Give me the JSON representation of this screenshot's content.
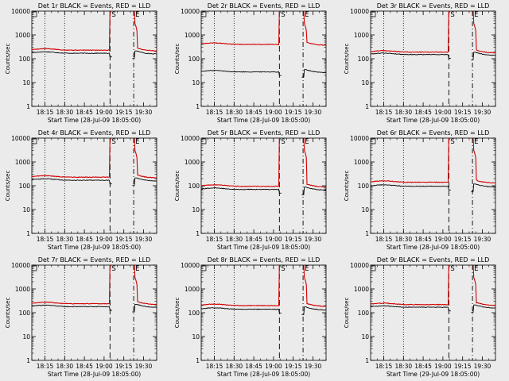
{
  "figure": {
    "background": "#ebebeb",
    "events_color": "#000000",
    "lld_color": "#d40000"
  },
  "chart_data": [
    {
      "type": "line",
      "title": "Det 1r BLACK = Events, RED = LLD",
      "ylabel": "Counts/sec",
      "xlabel": "Start Time (28-Jul-09 18:05:00)",
      "y_scale": "log",
      "ylim": [
        1,
        10000
      ],
      "y_ticks": [
        "1",
        "10",
        "100",
        "1000",
        "10000"
      ],
      "x_ticks": [
        "18:15",
        "18:30",
        "18:45",
        "19:00",
        "19:15",
        "19:30"
      ],
      "series": [
        {
          "name": "Events",
          "level": 170
        },
        {
          "name": "LLD",
          "level": 230
        }
      ],
      "markers": [
        "S",
        "E"
      ]
    },
    {
      "type": "line",
      "title": "Det 2r BLACK = Events, RED = LLD",
      "ylabel": "Counts/sec",
      "xlabel": "Start Time (28-Jul-09 18:05:00)",
      "y_scale": "log",
      "ylim": [
        1,
        10000
      ],
      "y_ticks": [
        "1",
        "10",
        "100",
        "1000",
        "10000"
      ],
      "x_ticks": [
        "18:15",
        "18:30",
        "18:45",
        "19:00",
        "19:15",
        "19:30"
      ],
      "series": [
        {
          "name": "Events",
          "level": 28
        },
        {
          "name": "LLD",
          "level": 400
        }
      ],
      "markers": [
        "S",
        "E"
      ]
    },
    {
      "type": "line",
      "title": "Det 3r BLACK = Events, RED = LLD",
      "ylabel": "Counts/sec",
      "xlabel": "Start Time (28-Jul-09 18:05:00)",
      "y_scale": "log",
      "ylim": [
        1,
        10000
      ],
      "y_ticks": [
        "1",
        "10",
        "100",
        "1000",
        "10000"
      ],
      "x_ticks": [
        "18:15",
        "18:30",
        "18:45",
        "19:00",
        "19:15",
        "19:30"
      ],
      "series": [
        {
          "name": "Events",
          "level": 150
        },
        {
          "name": "LLD",
          "level": 190
        }
      ],
      "markers": [
        "S",
        "E"
      ]
    },
    {
      "type": "line",
      "title": "Det 4r BLACK = Events, RED = LLD",
      "ylabel": "Counts/sec",
      "xlabel": "Start Time (28-Jul-09 18:05:00)",
      "y_scale": "log",
      "ylim": [
        1,
        10000
      ],
      "y_ticks": [
        "1",
        "10",
        "100",
        "1000",
        "10000"
      ],
      "x_ticks": [
        "18:15",
        "18:30",
        "18:45",
        "19:00",
        "19:15",
        "19:30"
      ],
      "series": [
        {
          "name": "Events",
          "level": 170
        },
        {
          "name": "LLD",
          "level": 230
        }
      ],
      "markers": [
        "S",
        "E"
      ]
    },
    {
      "type": "line",
      "title": "Det 5r BLACK = Events, RED = LLD",
      "ylabel": "Counts/sec",
      "xlabel": "Start Time (28-Jul-09 18:05:00)",
      "y_scale": "log",
      "ylim": [
        1,
        10000
      ],
      "y_ticks": [
        "1",
        "10",
        "100",
        "1000",
        "10000"
      ],
      "x_ticks": [
        "18:15",
        "18:30",
        "18:45",
        "19:00",
        "19:15",
        "19:30"
      ],
      "series": [
        {
          "name": "Events",
          "level": 70
        },
        {
          "name": "LLD",
          "level": 95
        }
      ],
      "markers": [
        "S",
        "E"
      ]
    },
    {
      "type": "line",
      "title": "Det 6r BLACK = Events, RED = LLD",
      "ylabel": "Counts/sec",
      "xlabel": "Start Time (28-Jul-09 18:05:00)",
      "y_scale": "log",
      "ylim": [
        1,
        10000
      ],
      "y_ticks": [
        "1",
        "10",
        "100",
        "1000",
        "10000"
      ],
      "x_ticks": [
        "18:15",
        "18:30",
        "18:45",
        "19:00",
        "19:15",
        "19:30"
      ],
      "series": [
        {
          "name": "Events",
          "level": 95
        },
        {
          "name": "LLD",
          "level": 140
        }
      ],
      "markers": [
        "S",
        "E"
      ]
    },
    {
      "type": "line",
      "title": "Det 7r BLACK = Events, RED = LLD",
      "ylabel": "Counts/sec",
      "xlabel": "Start Time (28-Jul-09 18:05:00)",
      "y_scale": "log",
      "ylim": [
        1,
        10000
      ],
      "y_ticks": [
        "1",
        "10",
        "100",
        "1000",
        "10000"
      ],
      "x_ticks": [
        "18:15",
        "18:30",
        "18:45",
        "19:00",
        "19:15",
        "19:30"
      ],
      "series": [
        {
          "name": "Events",
          "level": 180
        },
        {
          "name": "LLD",
          "level": 240
        }
      ],
      "markers": [
        "S",
        "E"
      ]
    },
    {
      "type": "line",
      "title": "Det 8r BLACK = Events, RED = LLD",
      "ylabel": "Counts/sec",
      "xlabel": "Start Time (28-Jul-09 18:05:00)",
      "y_scale": "log",
      "ylim": [
        1,
        10000
      ],
      "y_ticks": [
        "1",
        "10",
        "100",
        "1000",
        "10000"
      ],
      "x_ticks": [
        "18:15",
        "18:30",
        "18:45",
        "19:00",
        "19:15",
        "19:30"
      ],
      "series": [
        {
          "name": "Events",
          "level": 140
        },
        {
          "name": "LLD",
          "level": 200
        }
      ],
      "markers": [
        "S",
        "E"
      ]
    },
    {
      "type": "line",
      "title": "Det 9r BLACK = Events, RED = LLD",
      "ylabel": "Counts/sec",
      "xlabel": "Start Time (29-Jul-09 18:05:00)",
      "y_scale": "log",
      "ylim": [
        1,
        10000
      ],
      "y_ticks": [
        "1",
        "10",
        "100",
        "1000",
        "10000"
      ],
      "x_ticks": [
        "18:15",
        "18:30",
        "18:45",
        "19:00",
        "19:15",
        "19:30"
      ],
      "series": [
        {
          "name": "Events",
          "level": 170
        },
        {
          "name": "LLD",
          "level": 220
        }
      ],
      "markers": [
        "S",
        "E"
      ]
    }
  ]
}
